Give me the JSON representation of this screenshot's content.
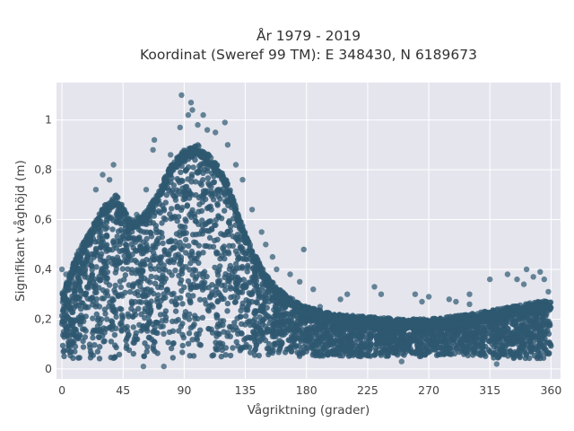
{
  "chart_data": {
    "type": "scatter",
    "title": "År 1979 - 2019",
    "subtitle": "Koordinat (Sweref 99 TM): E 348430, N 6189673",
    "xlabel": "Vågriktning (grader)",
    "ylabel": "Signifikant våghöjd (m)",
    "xlim": [
      -4,
      367
    ],
    "ylim": [
      -0.04,
      1.15
    ],
    "xticks": [
      0,
      45,
      90,
      135,
      180,
      225,
      270,
      315,
      360
    ],
    "xtick_labels": [
      "0",
      "45",
      "90",
      "135",
      "180",
      "225",
      "270",
      "315",
      "360"
    ],
    "yticks": [
      0,
      0.2,
      0.4,
      0.6,
      0.8,
      1.0
    ],
    "ytick_labels": [
      "0",
      "0,2",
      "0,4",
      "0,6",
      "0,8",
      "1"
    ],
    "grid": true,
    "legend": "none",
    "marker_color": "#2e5870",
    "background_color": "#e5e5ee",
    "envelope": {
      "x": [
        0,
        10,
        20,
        30,
        40,
        50,
        60,
        70,
        80,
        90,
        100,
        110,
        120,
        130,
        140,
        150,
        160,
        170,
        180,
        200,
        225,
        250,
        270,
        300,
        320,
        340,
        360
      ],
      "upper": [
        0.3,
        0.45,
        0.55,
        0.65,
        0.7,
        0.6,
        0.62,
        0.7,
        0.82,
        0.88,
        0.9,
        0.85,
        0.78,
        0.62,
        0.48,
        0.38,
        0.32,
        0.28,
        0.25,
        0.22,
        0.21,
        0.2,
        0.2,
        0.22,
        0.24,
        0.26,
        0.28
      ],
      "lower": [
        0.04,
        0.04,
        0.04,
        0.04,
        0.04,
        0.04,
        0.04,
        0.04,
        0.04,
        0.04,
        0.04,
        0.04,
        0.04,
        0.04,
        0.05,
        0.05,
        0.05,
        0.05,
        0.05,
        0.05,
        0.05,
        0.05,
        0.05,
        0.05,
        0.04,
        0.04,
        0.04
      ]
    },
    "outlier_points": [
      {
        "x": 0,
        "y": 0.4
      },
      {
        "x": 3,
        "y": 0.38
      },
      {
        "x": 25,
        "y": 0.72
      },
      {
        "x": 30,
        "y": 0.78
      },
      {
        "x": 35,
        "y": 0.76
      },
      {
        "x": 38,
        "y": 0.82
      },
      {
        "x": 45,
        "y": 0.55
      },
      {
        "x": 55,
        "y": 0.62
      },
      {
        "x": 62,
        "y": 0.72
      },
      {
        "x": 67,
        "y": 0.88
      },
      {
        "x": 68,
        "y": 0.92
      },
      {
        "x": 80,
        "y": 0.86
      },
      {
        "x": 87,
        "y": 0.97
      },
      {
        "x": 88,
        "y": 1.1
      },
      {
        "x": 93,
        "y": 1.02
      },
      {
        "x": 95,
        "y": 1.07
      },
      {
        "x": 96,
        "y": 1.04
      },
      {
        "x": 100,
        "y": 0.98
      },
      {
        "x": 104,
        "y": 1.02
      },
      {
        "x": 107,
        "y": 0.96
      },
      {
        "x": 113,
        "y": 0.95
      },
      {
        "x": 120,
        "y": 0.99
      },
      {
        "x": 122,
        "y": 0.9
      },
      {
        "x": 128,
        "y": 0.82
      },
      {
        "x": 133,
        "y": 0.76
      },
      {
        "x": 140,
        "y": 0.64
      },
      {
        "x": 147,
        "y": 0.55
      },
      {
        "x": 150,
        "y": 0.5
      },
      {
        "x": 155,
        "y": 0.45
      },
      {
        "x": 158,
        "y": 0.4
      },
      {
        "x": 168,
        "y": 0.38
      },
      {
        "x": 175,
        "y": 0.35
      },
      {
        "x": 178,
        "y": 0.48
      },
      {
        "x": 185,
        "y": 0.32
      },
      {
        "x": 190,
        "y": 0.25
      },
      {
        "x": 205,
        "y": 0.28
      },
      {
        "x": 210,
        "y": 0.3
      },
      {
        "x": 230,
        "y": 0.33
      },
      {
        "x": 235,
        "y": 0.3
      },
      {
        "x": 260,
        "y": 0.3
      },
      {
        "x": 265,
        "y": 0.27
      },
      {
        "x": 270,
        "y": 0.29
      },
      {
        "x": 285,
        "y": 0.28
      },
      {
        "x": 290,
        "y": 0.27
      },
      {
        "x": 300,
        "y": 0.26
      },
      {
        "x": 315,
        "y": 0.36
      },
      {
        "x": 328,
        "y": 0.38
      },
      {
        "x": 335,
        "y": 0.36
      },
      {
        "x": 340,
        "y": 0.34
      },
      {
        "x": 342,
        "y": 0.4
      },
      {
        "x": 347,
        "y": 0.37
      },
      {
        "x": 352,
        "y": 0.39
      },
      {
        "x": 355,
        "y": 0.36
      },
      {
        "x": 358,
        "y": 0.31
      },
      {
        "x": 60,
        "y": 0.01
      },
      {
        "x": 75,
        "y": 0.01
      },
      {
        "x": 250,
        "y": 0.03
      },
      {
        "x": 320,
        "y": 0.02
      },
      {
        "x": 300,
        "y": 0.3
      }
    ]
  }
}
